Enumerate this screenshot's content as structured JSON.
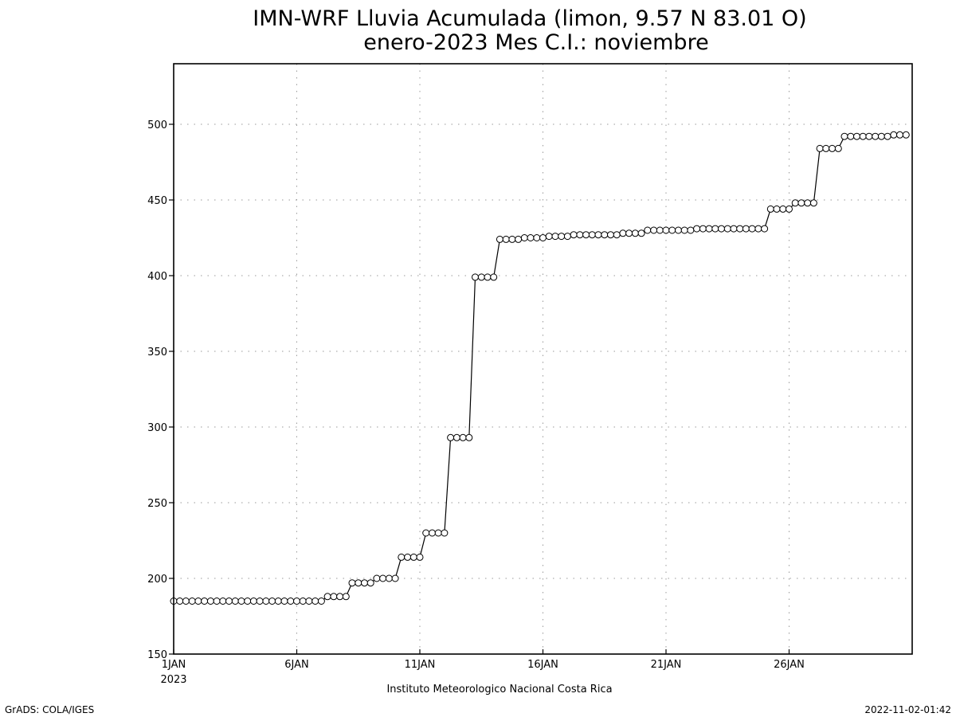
{
  "chart_data": {
    "type": "line",
    "title": "IMN-WRF  Lluvia Acumulada (limon, 9.57  N 83.01  O)",
    "subtitle": "enero-2023 Mes C.I.: noviembre",
    "xlabel": "Instituto Meteorologico Nacional Costa Rica",
    "ylabel": "",
    "xlim": [
      1,
      31
    ],
    "ylim": [
      150,
      540
    ],
    "y_ticks": [
      150,
      200,
      250,
      300,
      350,
      400,
      450,
      500
    ],
    "x_ticks": [
      {
        "day": 1,
        "label": "1JAN",
        "sub": "2023"
      },
      {
        "day": 6,
        "label": "6JAN"
      },
      {
        "day": 11,
        "label": "11JAN"
      },
      {
        "day": 16,
        "label": "16JAN"
      },
      {
        "day": 21,
        "label": "21JAN"
      },
      {
        "day": 26,
        "label": "26JAN"
      }
    ],
    "grid": true,
    "marker": "open-circle",
    "step_hours": 6,
    "series": [
      {
        "values": [
          185,
          185,
          185,
          185,
          185,
          185,
          185,
          185,
          185,
          185,
          185,
          185,
          185,
          185,
          185,
          185,
          185,
          185,
          185,
          185,
          185,
          185,
          185,
          185,
          185,
          188,
          188,
          188,
          188,
          197,
          197,
          197,
          197,
          200,
          200,
          200,
          200,
          214,
          214,
          214,
          214,
          230,
          230,
          230,
          230,
          293,
          293,
          293,
          293,
          399,
          399,
          399,
          399,
          424,
          424,
          424,
          424,
          425,
          425,
          425,
          425,
          426,
          426,
          426,
          426,
          427,
          427,
          427,
          427,
          427,
          427,
          427,
          427,
          428,
          428,
          428,
          428,
          430,
          430,
          430,
          430,
          430,
          430,
          430,
          430,
          431,
          431,
          431,
          431,
          431,
          431,
          431,
          431,
          431,
          431,
          431,
          431,
          444,
          444,
          444,
          444,
          448,
          448,
          448,
          448,
          484,
          484,
          484,
          484,
          492,
          492,
          492,
          492,
          492,
          492,
          492,
          492,
          493,
          493,
          493
        ]
      }
    ]
  },
  "footer": {
    "left": "GrADS: COLA/IGES",
    "right": "2022-11-02-01:42"
  }
}
